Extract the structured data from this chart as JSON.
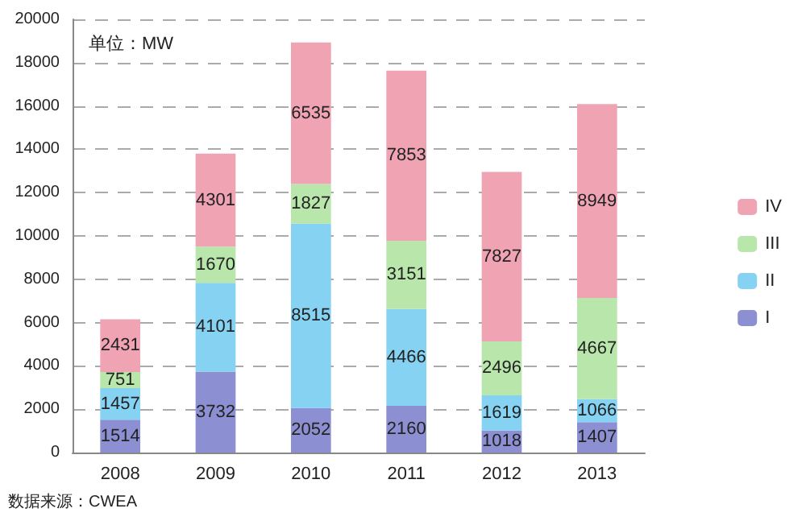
{
  "chart_data": {
    "type": "bar",
    "stacked": true,
    "categories": [
      "2008",
      "2009",
      "2010",
      "2011",
      "2012",
      "2013"
    ],
    "series": [
      {
        "name": "I",
        "color": "#8c90d2",
        "values": [
          1514,
          3732,
          2052,
          2160,
          1018,
          1407
        ]
      },
      {
        "name": "II",
        "color": "#86d2f2",
        "values": [
          1457,
          4101,
          8515,
          4466,
          1619,
          1066
        ]
      },
      {
        "name": "III",
        "color": "#b8e6ab",
        "values": [
          751,
          1670,
          1827,
          3151,
          2496,
          4667
        ]
      },
      {
        "name": "IV",
        "color": "#f0a3b3",
        "values": [
          2431,
          4301,
          6535,
          7853,
          7827,
          8949
        ]
      }
    ],
    "ylim": [
      0,
      20000
    ],
    "yticks": [
      0,
      2000,
      4000,
      6000,
      8000,
      10000,
      12000,
      14000,
      16000,
      18000,
      20000
    ],
    "grid": "y",
    "legend": "right",
    "data_labels": true,
    "annotations": [
      "单位：MW",
      "数据来源：CWEA"
    ]
  }
}
